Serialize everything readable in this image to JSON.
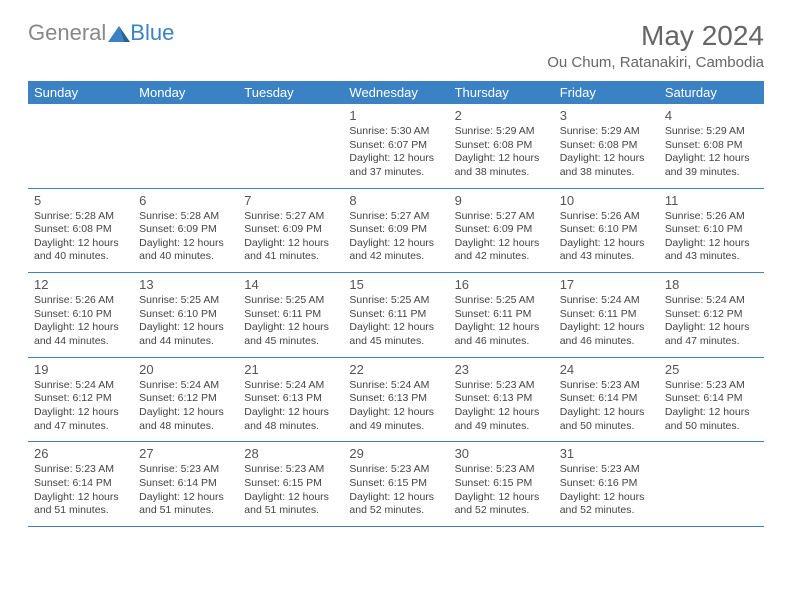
{
  "logo": {
    "text1": "General",
    "text2": "Blue"
  },
  "title": "May 2024",
  "location": "Ou Chum, Ratanakiri, Cambodia",
  "colors": {
    "accent": "#3b82c4",
    "text": "#444",
    "muted": "#666",
    "bg": "#ffffff"
  },
  "dayNames": [
    "Sunday",
    "Monday",
    "Tuesday",
    "Wednesday",
    "Thursday",
    "Friday",
    "Saturday"
  ],
  "labels": {
    "sunrise": "Sunrise:",
    "sunset": "Sunset:",
    "daylight": "Daylight:"
  },
  "weeks": [
    [
      null,
      null,
      null,
      {
        "n": "1",
        "sr": "5:30 AM",
        "ss": "6:07 PM",
        "dl": "12 hours and 37 minutes."
      },
      {
        "n": "2",
        "sr": "5:29 AM",
        "ss": "6:08 PM",
        "dl": "12 hours and 38 minutes."
      },
      {
        "n": "3",
        "sr": "5:29 AM",
        "ss": "6:08 PM",
        "dl": "12 hours and 38 minutes."
      },
      {
        "n": "4",
        "sr": "5:29 AM",
        "ss": "6:08 PM",
        "dl": "12 hours and 39 minutes."
      }
    ],
    [
      {
        "n": "5",
        "sr": "5:28 AM",
        "ss": "6:08 PM",
        "dl": "12 hours and 40 minutes."
      },
      {
        "n": "6",
        "sr": "5:28 AM",
        "ss": "6:09 PM",
        "dl": "12 hours and 40 minutes."
      },
      {
        "n": "7",
        "sr": "5:27 AM",
        "ss": "6:09 PM",
        "dl": "12 hours and 41 minutes."
      },
      {
        "n": "8",
        "sr": "5:27 AM",
        "ss": "6:09 PM",
        "dl": "12 hours and 42 minutes."
      },
      {
        "n": "9",
        "sr": "5:27 AM",
        "ss": "6:09 PM",
        "dl": "12 hours and 42 minutes."
      },
      {
        "n": "10",
        "sr": "5:26 AM",
        "ss": "6:10 PM",
        "dl": "12 hours and 43 minutes."
      },
      {
        "n": "11",
        "sr": "5:26 AM",
        "ss": "6:10 PM",
        "dl": "12 hours and 43 minutes."
      }
    ],
    [
      {
        "n": "12",
        "sr": "5:26 AM",
        "ss": "6:10 PM",
        "dl": "12 hours and 44 minutes."
      },
      {
        "n": "13",
        "sr": "5:25 AM",
        "ss": "6:10 PM",
        "dl": "12 hours and 44 minutes."
      },
      {
        "n": "14",
        "sr": "5:25 AM",
        "ss": "6:11 PM",
        "dl": "12 hours and 45 minutes."
      },
      {
        "n": "15",
        "sr": "5:25 AM",
        "ss": "6:11 PM",
        "dl": "12 hours and 45 minutes."
      },
      {
        "n": "16",
        "sr": "5:25 AM",
        "ss": "6:11 PM",
        "dl": "12 hours and 46 minutes."
      },
      {
        "n": "17",
        "sr": "5:24 AM",
        "ss": "6:11 PM",
        "dl": "12 hours and 46 minutes."
      },
      {
        "n": "18",
        "sr": "5:24 AM",
        "ss": "6:12 PM",
        "dl": "12 hours and 47 minutes."
      }
    ],
    [
      {
        "n": "19",
        "sr": "5:24 AM",
        "ss": "6:12 PM",
        "dl": "12 hours and 47 minutes."
      },
      {
        "n": "20",
        "sr": "5:24 AM",
        "ss": "6:12 PM",
        "dl": "12 hours and 48 minutes."
      },
      {
        "n": "21",
        "sr": "5:24 AM",
        "ss": "6:13 PM",
        "dl": "12 hours and 48 minutes."
      },
      {
        "n": "22",
        "sr": "5:24 AM",
        "ss": "6:13 PM",
        "dl": "12 hours and 49 minutes."
      },
      {
        "n": "23",
        "sr": "5:23 AM",
        "ss": "6:13 PM",
        "dl": "12 hours and 49 minutes."
      },
      {
        "n": "24",
        "sr": "5:23 AM",
        "ss": "6:14 PM",
        "dl": "12 hours and 50 minutes."
      },
      {
        "n": "25",
        "sr": "5:23 AM",
        "ss": "6:14 PM",
        "dl": "12 hours and 50 minutes."
      }
    ],
    [
      {
        "n": "26",
        "sr": "5:23 AM",
        "ss": "6:14 PM",
        "dl": "12 hours and 51 minutes."
      },
      {
        "n": "27",
        "sr": "5:23 AM",
        "ss": "6:14 PM",
        "dl": "12 hours and 51 minutes."
      },
      {
        "n": "28",
        "sr": "5:23 AM",
        "ss": "6:15 PM",
        "dl": "12 hours and 51 minutes."
      },
      {
        "n": "29",
        "sr": "5:23 AM",
        "ss": "6:15 PM",
        "dl": "12 hours and 52 minutes."
      },
      {
        "n": "30",
        "sr": "5:23 AM",
        "ss": "6:15 PM",
        "dl": "12 hours and 52 minutes."
      },
      {
        "n": "31",
        "sr": "5:23 AM",
        "ss": "6:16 PM",
        "dl": "12 hours and 52 minutes."
      },
      null
    ]
  ]
}
